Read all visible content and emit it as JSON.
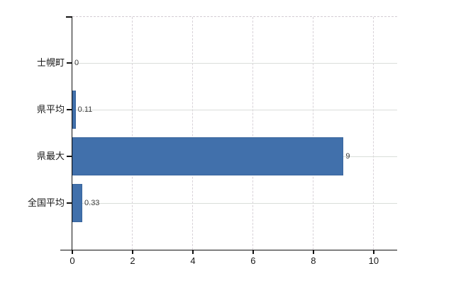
{
  "chart_data": {
    "type": "bar",
    "orientation": "horizontal",
    "title": "",
    "xlabel": "",
    "ylabel": "",
    "categories": [
      "士幌町",
      "県平均",
      "県最大",
      "全国平均"
    ],
    "values": [
      0,
      0.11,
      9,
      0.33
    ],
    "value_labels": [
      "0",
      "0.11",
      "9",
      "0.33"
    ],
    "xlim": [
      0,
      10.78
    ],
    "xticks": [
      0,
      2,
      4,
      6,
      8,
      10
    ],
    "xtick_labels": [
      "0",
      "2",
      "4",
      "6",
      "8",
      "10"
    ],
    "grid": true,
    "legend": false,
    "gridline_style": {
      "horizontal": "solid",
      "vertical": "dashed",
      "plot_top_border": "dashed"
    },
    "colors": {
      "bar_fill": "#4170ab",
      "bar_border": "#39659d",
      "axis": "#111111",
      "gridline_horizontal": "#dadeda",
      "gridline_vertical": "#d8d2d8",
      "plot_top_border": "#d3ccd3",
      "tick_label_text": "#1a1a1a",
      "value_label_text": "#3c3c3c",
      "background": "#ffffff"
    }
  }
}
